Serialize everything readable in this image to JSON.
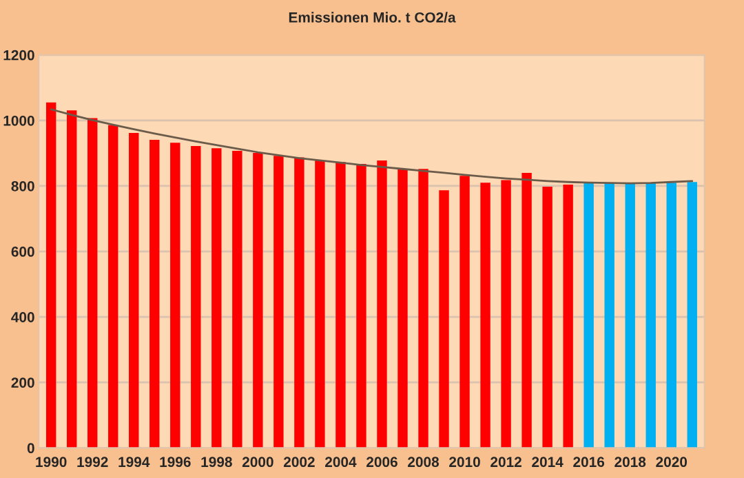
{
  "chart_data": {
    "type": "bar",
    "title": "Emissionen Mio. t CO2/a",
    "categories": [
      "1990",
      null,
      "1992",
      null,
      "1994",
      null,
      "1996",
      null,
      "1998",
      null,
      "2000",
      null,
      "2002",
      null,
      "2004",
      null,
      "2006",
      null,
      "2008",
      null,
      "2010",
      null,
      "2012",
      null,
      "2014",
      null,
      "2016",
      null,
      "2018",
      null,
      "2020",
      null
    ],
    "series": [
      {
        "type": "bar",
        "colors": [
          "#ff0000",
          "#ff0000",
          "#ff0000",
          "#ff0000",
          "#ff0000",
          "#ff0000",
          "#ff0000",
          "#ff0000",
          "#ff0000",
          "#ff0000",
          "#ff0000",
          "#ff0000",
          "#ff0000",
          "#ff0000",
          "#ff0000",
          "#ff0000",
          "#ff0000",
          "#ff0000",
          "#ff0000",
          "#ff0000",
          "#ff0000",
          "#ff0000",
          "#ff0000",
          "#ff0000",
          "#ff0000",
          "#ff0000",
          "#00b0f0",
          "#00b0f0",
          "#00b0f0",
          "#00b0f0",
          "#00b0f0",
          "#00b0f0"
        ],
        "values": [
          1055,
          1031,
          1007,
          986,
          962,
          941,
          932,
          922,
          915,
          907,
          901,
          892,
          887,
          878,
          873,
          867,
          878,
          851,
          852,
          787,
          831,
          810,
          818,
          840,
          798,
          804,
          810,
          810,
          810,
          810,
          810,
          812
        ]
      },
      {
        "type": "line",
        "color": "#6b5b4b",
        "values": [
          1034,
          1017,
          1001,
          987,
          973,
          960,
          948,
          936,
          925,
          914,
          903,
          894,
          885,
          878,
          871,
          864,
          858,
          852,
          846,
          840,
          834,
          828,
          823,
          819,
          815,
          812,
          810,
          809,
          808,
          809,
          812,
          815
        ]
      }
    ],
    "ylim": [
      0,
      1200
    ],
    "yticks": [
      0,
      200,
      400,
      600,
      800,
      1000,
      1200
    ],
    "grid": "y",
    "legend": false
  }
}
